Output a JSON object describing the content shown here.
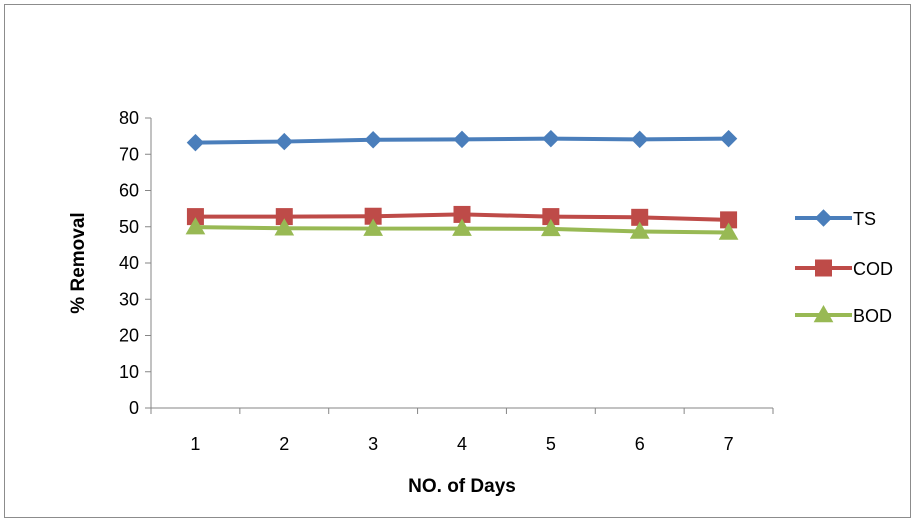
{
  "chart_data": {
    "type": "line",
    "title": "",
    "xlabel": "NO. of Days",
    "ylabel": "% Removal",
    "categories": [
      "1",
      "2",
      "3",
      "4",
      "5",
      "6",
      "7"
    ],
    "ylim": [
      0,
      80
    ],
    "yticks": [
      "0",
      "10",
      "20",
      "30",
      "40",
      "50",
      "60",
      "70",
      "80"
    ],
    "grid": false,
    "legend_position": "right",
    "series": [
      {
        "name": "TS",
        "color": "#4a7ebb",
        "marker": "diamond",
        "values": [
          73.2,
          73.5,
          74.0,
          74.1,
          74.3,
          74.1,
          74.3
        ]
      },
      {
        "name": "COD",
        "color": "#be4b48",
        "marker": "square",
        "values": [
          52.8,
          52.8,
          52.9,
          53.4,
          52.8,
          52.6,
          51.9
        ]
      },
      {
        "name": "BOD",
        "color": "#98b954",
        "marker": "triangle",
        "values": [
          49.9,
          49.6,
          49.5,
          49.5,
          49.4,
          48.7,
          48.4
        ]
      }
    ]
  }
}
